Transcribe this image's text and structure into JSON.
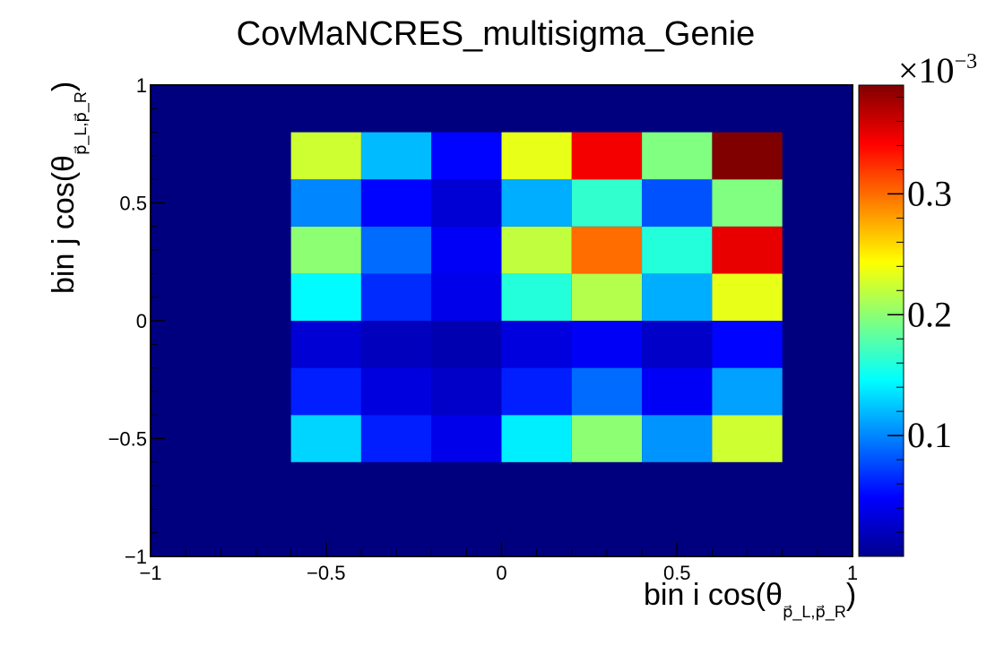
{
  "chart_data": {
    "type": "heatmap",
    "title": "CovMaNCRES_multisigma_Genie",
    "xlabel": {
      "main": "bin i cos(θ",
      "sub": "p⃗_L,p⃗_R",
      "close": ")"
    },
    "ylabel": {
      "main": "bin j cos(θ",
      "sub": "p⃗_L,p⃗_R",
      "close": ")"
    },
    "xlim": [
      -1,
      1
    ],
    "ylim": [
      -1,
      1
    ],
    "x_ticks": [
      {
        "value": -1,
        "label": "−1"
      },
      {
        "value": -0.5,
        "label": "−0.5"
      },
      {
        "value": 0,
        "label": "0"
      },
      {
        "value": 0.5,
        "label": "0.5"
      },
      {
        "value": 1,
        "label": "1"
      }
    ],
    "y_ticks": [
      {
        "value": -1,
        "label": "−1"
      },
      {
        "value": -0.5,
        "label": "−0.5"
      },
      {
        "value": 0,
        "label": "0"
      },
      {
        "value": 0.5,
        "label": "0.5"
      },
      {
        "value": 1,
        "label": "1"
      }
    ],
    "x_edges": [
      -0.6,
      -0.4,
      -0.2,
      0.0,
      0.2,
      0.4,
      0.6,
      0.8
    ],
    "y_edges": [
      -0.6,
      -0.4,
      -0.2,
      0.0,
      0.2,
      0.4,
      0.6,
      0.8
    ],
    "z_units": "1e-3",
    "z_range": [
      0.0,
      0.39
    ],
    "values": [
      [
        0.13,
        0.06,
        0.04,
        0.14,
        0.2,
        0.105,
        0.225
      ],
      [
        0.06,
        0.035,
        0.025,
        0.06,
        0.09,
        0.045,
        0.11
      ],
      [
        0.03,
        0.02,
        0.015,
        0.035,
        0.045,
        0.025,
        0.05
      ],
      [
        0.145,
        0.065,
        0.04,
        0.16,
        0.215,
        0.115,
        0.235
      ],
      [
        0.2,
        0.09,
        0.045,
        0.22,
        0.3,
        0.16,
        0.35
      ],
      [
        0.1,
        0.05,
        0.03,
        0.115,
        0.165,
        0.08,
        0.195
      ],
      [
        0.225,
        0.12,
        0.05,
        0.235,
        0.345,
        0.195,
        0.39
      ]
    ],
    "colorbar": {
      "ticks": [
        {
          "value": 0.1,
          "label": "0.1"
        },
        {
          "value": 0.2,
          "label": "0.2"
        },
        {
          "value": 0.3,
          "label": "0.3"
        }
      ],
      "exponent_label": "×10",
      "exponent": "−3"
    },
    "colormap": [
      "#00008f",
      "#0000ff",
      "#0080ff",
      "#00ffff",
      "#80ff80",
      "#ffff00",
      "#ff8000",
      "#ff0000",
      "#800000"
    ],
    "background_color": "#00007f",
    "grid": false,
    "legend": "none"
  }
}
